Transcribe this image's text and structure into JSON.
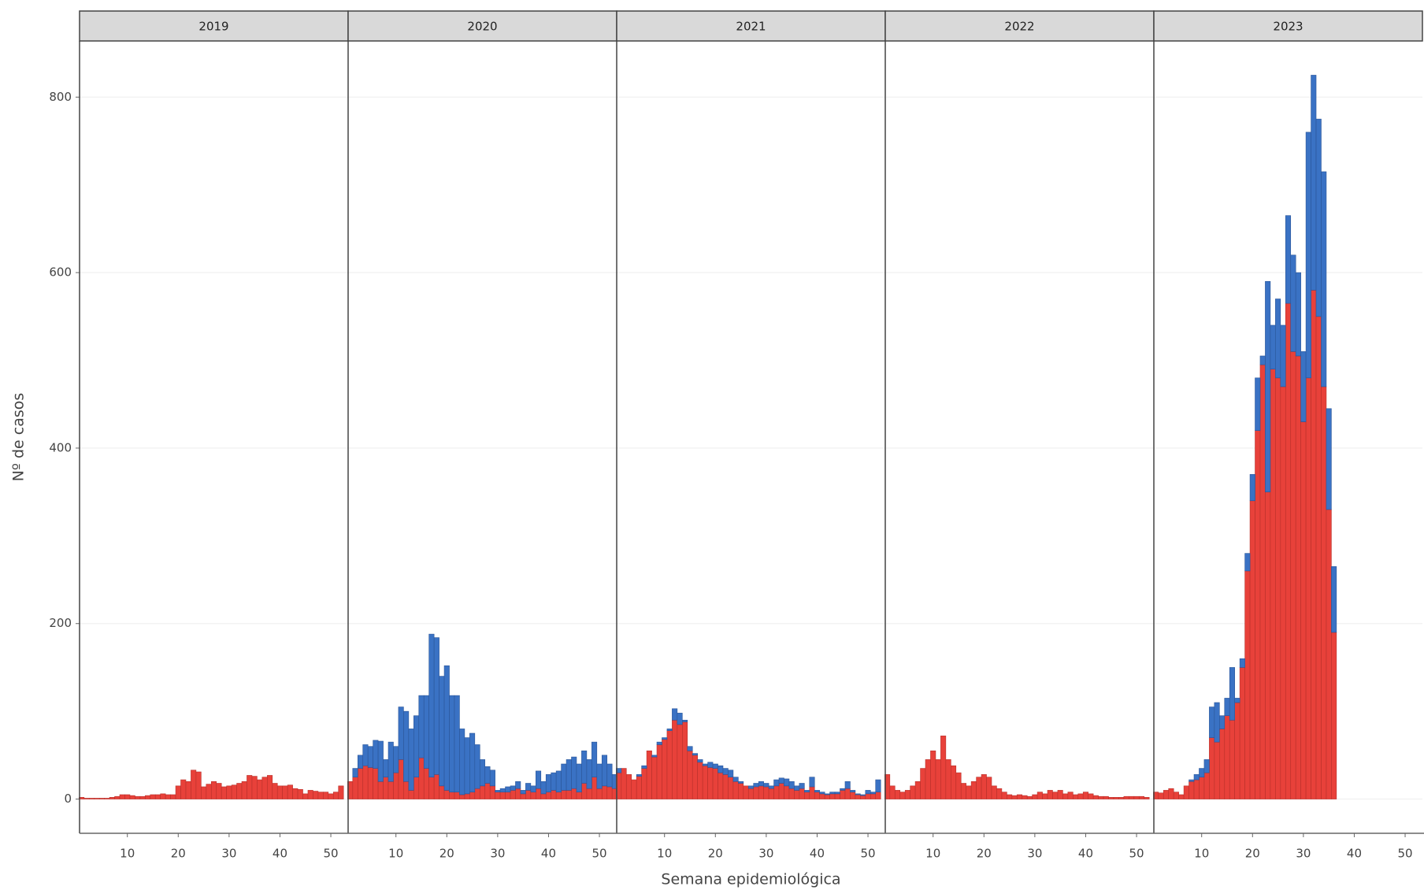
{
  "chart_data": {
    "type": "bar",
    "ylabel": "Nº de casos",
    "xlabel": "Semana epidemiológica",
    "ylim": [
      -39,
      864
    ],
    "yticks": [
      0,
      200,
      400,
      600,
      800
    ],
    "xlim": [
      0.6,
      53.4
    ],
    "xticks": [
      10,
      20,
      30,
      40,
      50
    ],
    "grid": true,
    "facets": [
      {
        "title": "2019",
        "x": [
          1,
          2,
          3,
          4,
          5,
          6,
          7,
          8,
          9,
          10,
          11,
          12,
          13,
          14,
          15,
          16,
          17,
          18,
          19,
          20,
          21,
          22,
          23,
          24,
          25,
          26,
          27,
          28,
          29,
          30,
          31,
          32,
          33,
          34,
          35,
          36,
          37,
          38,
          39,
          40,
          41,
          42,
          43,
          44,
          45,
          46,
          47,
          48,
          49,
          50,
          51,
          52
        ],
        "series": [
          {
            "color": "#e8413a",
            "values": [
              2,
              1,
              1,
              1,
              1,
              1,
              2,
              3,
              5,
              5,
              4,
              3,
              3,
              4,
              5,
              5,
              6,
              5,
              5,
              15,
              22,
              20,
              33,
              31,
              14,
              17,
              20,
              18,
              14,
              15,
              16,
              18,
              20,
              27,
              26,
              22,
              25,
              27,
              18,
              15,
              15,
              16,
              12,
              11,
              6,
              10,
              9,
              8,
              8,
              6,
              8,
              15
            ]
          }
        ]
      },
      {
        "title": "2020",
        "x": [
          1,
          2,
          3,
          4,
          5,
          6,
          7,
          8,
          9,
          10,
          11,
          12,
          13,
          14,
          15,
          16,
          17,
          18,
          19,
          20,
          21,
          22,
          23,
          24,
          25,
          26,
          27,
          28,
          29,
          30,
          31,
          32,
          33,
          34,
          35,
          36,
          37,
          38,
          39,
          40,
          41,
          42,
          43,
          44,
          45,
          46,
          47,
          48,
          49,
          50,
          51,
          52,
          53
        ],
        "series": [
          {
            "color": "#e8413a",
            "values": [
              20,
              25,
              35,
              38,
              36,
              35,
              20,
              25,
              20,
              30,
              45,
              20,
              10,
              25,
              47,
              35,
              25,
              28,
              15,
              10,
              8,
              8,
              5,
              6,
              8,
              12,
              15,
              18,
              15,
              8,
              8,
              8,
              10,
              12,
              6,
              10,
              8,
              12,
              6,
              8,
              10,
              8,
              10,
              10,
              12,
              8,
              18,
              12,
              25,
              12,
              15,
              14,
              12
            ]
          },
          {
            "color": "#3a72c4",
            "values": [
              0,
              10,
              15,
              24,
              24,
              32,
              46,
              20,
              45,
              30,
              60,
              80,
              70,
              70,
              71,
              83,
              163,
              156,
              125,
              142,
              110,
              110,
              75,
              64,
              67,
              50,
              30,
              19,
              18,
              2,
              4,
              6,
              5,
              8,
              4,
              8,
              7,
              20,
              14,
              20,
              20,
              24,
              30,
              35,
              36,
              32,
              37,
              33,
              40,
              28,
              35,
              26,
              16
            ]
          }
        ]
      },
      {
        "title": "2021",
        "x": [
          1,
          2,
          3,
          4,
          5,
          6,
          7,
          8,
          9,
          10,
          11,
          12,
          13,
          14,
          15,
          16,
          17,
          18,
          19,
          20,
          21,
          22,
          23,
          24,
          25,
          26,
          27,
          28,
          29,
          30,
          31,
          32,
          33,
          34,
          35,
          36,
          37,
          38,
          39,
          40,
          41,
          42,
          43,
          44,
          45,
          46,
          47,
          48,
          49,
          50,
          51,
          52
        ],
        "series": [
          {
            "color": "#e8413a",
            "values": [
              30,
              35,
              28,
              22,
              26,
              35,
              55,
              48,
              62,
              68,
              78,
              90,
              85,
              88,
              55,
              50,
              42,
              38,
              36,
              35,
              30,
              28,
              25,
              20,
              18,
              15,
              12,
              14,
              15,
              14,
              12,
              15,
              18,
              15,
              12,
              10,
              12,
              8,
              14,
              8,
              6,
              5,
              6,
              6,
              10,
              12,
              8,
              5,
              4,
              6,
              6,
              8
            ]
          },
          {
            "color": "#3a72c4",
            "values": [
              5,
              0,
              0,
              0,
              2,
              3,
              0,
              2,
              3,
              2,
              2,
              13,
              13,
              2,
              5,
              2,
              3,
              2,
              6,
              5,
              8,
              7,
              8,
              5,
              2,
              0,
              3,
              4,
              5,
              4,
              3,
              7,
              6,
              8,
              8,
              5,
              6,
              2,
              11,
              2,
              2,
              1,
              2,
              2,
              2,
              8,
              2,
              1,
              1,
              4,
              2,
              14
            ]
          }
        ]
      },
      {
        "title": "2022",
        "x": [
          1,
          2,
          3,
          4,
          5,
          6,
          7,
          8,
          9,
          10,
          11,
          12,
          13,
          14,
          15,
          16,
          17,
          18,
          19,
          20,
          21,
          22,
          23,
          24,
          25,
          26,
          27,
          28,
          29,
          30,
          31,
          32,
          33,
          34,
          35,
          36,
          37,
          38,
          39,
          40,
          41,
          42,
          43,
          44,
          45,
          46,
          47,
          48,
          49,
          50,
          51,
          52
        ],
        "series": [
          {
            "color": "#e8413a",
            "values": [
              28,
              15,
              10,
              8,
              10,
              15,
              20,
              35,
              45,
              55,
              45,
              72,
              45,
              38,
              30,
              18,
              15,
              20,
              25,
              28,
              25,
              15,
              12,
              8,
              5,
              4,
              5,
              4,
              3,
              5,
              8,
              6,
              10,
              8,
              10,
              6,
              8,
              5,
              6,
              8,
              6,
              4,
              3,
              3,
              2,
              2,
              2,
              3,
              3,
              3,
              3,
              2
            ]
          }
        ]
      },
      {
        "title": "2023",
        "x": [
          1,
          2,
          3,
          4,
          5,
          6,
          7,
          8,
          9,
          10,
          11,
          12,
          13,
          14,
          15,
          16,
          17,
          18,
          19,
          20,
          21,
          22,
          23,
          24,
          25,
          26,
          27,
          28,
          29,
          30,
          31,
          32,
          33,
          34,
          35,
          36
        ],
        "series": [
          {
            "color": "#e8413a",
            "values": [
              8,
              7,
              10,
              12,
              8,
              5,
              15,
              20,
              22,
              25,
              30,
              70,
              65,
              80,
              95,
              90,
              110,
              150,
              260,
              340,
              420,
              495,
              350,
              490,
              480,
              470,
              565,
              510,
              505,
              430,
              480,
              580,
              550,
              470,
              330,
              190
            ]
          },
          {
            "color": "#3a72c4",
            "values": [
              0,
              0,
              0,
              0,
              0,
              0,
              0,
              2,
              6,
              10,
              15,
              35,
              45,
              15,
              20,
              60,
              5,
              10,
              20,
              30,
              60,
              10,
              240,
              50,
              90,
              70,
              100,
              110,
              95,
              80,
              280,
              245,
              225,
              245,
              115,
              75
            ]
          }
        ]
      }
    ]
  }
}
